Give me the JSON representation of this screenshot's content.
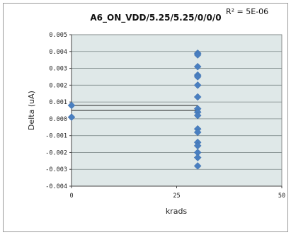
{
  "chart_data": {
    "type": "scatter",
    "title": "A6_ON_VDD/5.25/5.25/0/0/0",
    "annotation": "R² = 5E-06",
    "xlabel": "krads",
    "ylabel": "Delta (uA)",
    "xlim": [
      0,
      50
    ],
    "ylim": [
      -0.004,
      0.005
    ],
    "x_ticks": [
      0,
      25,
      50
    ],
    "y_ticks": [
      -0.004,
      -0.003,
      -0.002,
      -0.001,
      0.0,
      0.001,
      0.002,
      0.003,
      0.004,
      0.005
    ],
    "x_tick_labels": [
      "0",
      "25",
      "50"
    ],
    "y_tick_labels": [
      "-0.004",
      "-0.003",
      "-0.002",
      "-0.001",
      "0.000",
      "0.001",
      "0.002",
      "0.003",
      "0.004",
      "0.005"
    ],
    "grid": true,
    "plot_background": "#dfe8e8",
    "marker_color": "#4a7fc0",
    "series": [
      {
        "points": [
          [
            0,
            0.0008
          ],
          [
            0,
            0.0001
          ],
          [
            30,
            0.0039
          ],
          [
            30,
            0.0038
          ],
          [
            30,
            0.0031
          ],
          [
            30,
            0.0026
          ],
          [
            30,
            0.0025
          ],
          [
            30,
            0.002
          ],
          [
            30,
            0.0013
          ],
          [
            30,
            0.0006
          ],
          [
            30,
            0.0004
          ],
          [
            30,
            0.0002
          ],
          [
            30,
            -0.0006
          ],
          [
            30,
            -0.0008
          ],
          [
            30,
            -0.0014
          ],
          [
            30,
            -0.0016
          ],
          [
            30,
            -0.002
          ],
          [
            30,
            -0.0023
          ],
          [
            30,
            -0.0028
          ]
        ]
      }
    ],
    "lines": [
      {
        "x0": 0,
        "x1": 30,
        "y": 0.0008
      },
      {
        "x0": 0,
        "x1": 30,
        "y": 0.0005
      }
    ]
  }
}
